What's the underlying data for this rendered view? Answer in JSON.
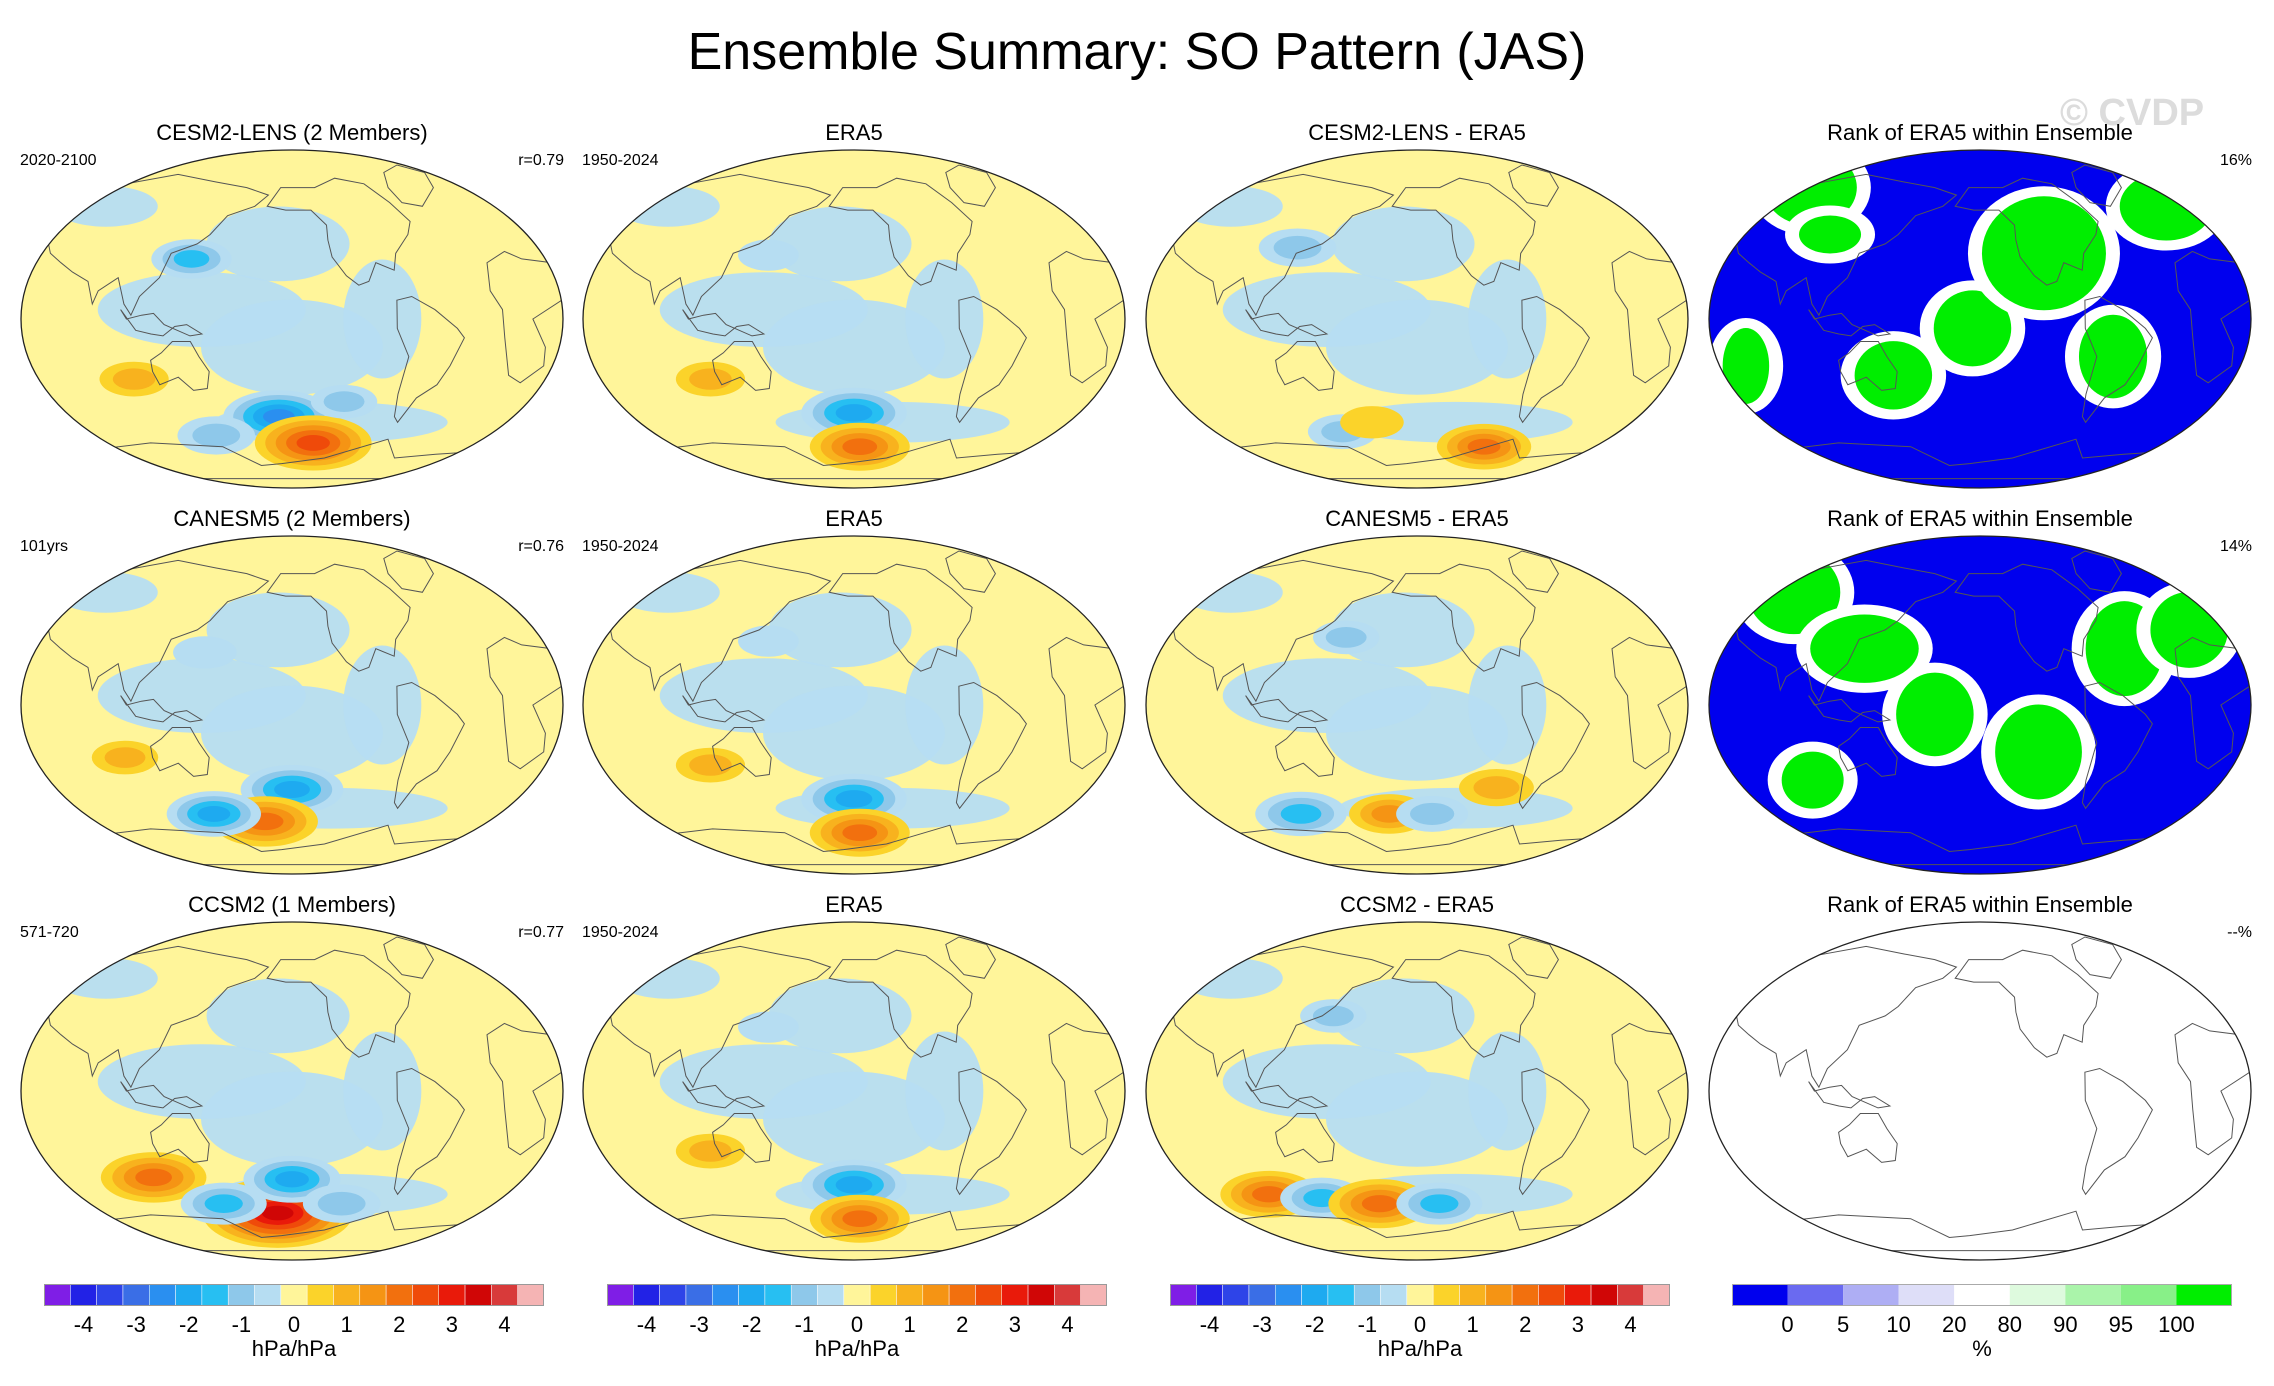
{
  "title": "Ensemble Summary: SO Pattern (JAS)",
  "watermark": "© CVDP",
  "rows": [
    {
      "model": {
        "title": "CESM2-LENS (2 Members)",
        "left": "2020-2100",
        "right": "r=0.79"
      },
      "obs": {
        "title": "ERA5",
        "left": "1950-2024"
      },
      "diff": {
        "title": "CESM2-LENS - ERA5"
      },
      "rank": {
        "title": "Rank of ERA5 within Ensemble",
        "right": "16%"
      }
    },
    {
      "model": {
        "title": "CANESM5 (2 Members)",
        "left": "101yrs",
        "right": "r=0.76"
      },
      "obs": {
        "title": "ERA5",
        "left": "1950-2024"
      },
      "diff": {
        "title": "CANESM5 - ERA5"
      },
      "rank": {
        "title": "Rank of ERA5 within Ensemble",
        "right": "14%"
      }
    },
    {
      "model": {
        "title": "CCSM2 (1 Members)",
        "left": "571-720",
        "right": "r=0.77"
      },
      "obs": {
        "title": "ERA5",
        "left": "1950-2024"
      },
      "diff": {
        "title": "CCSM2 - ERA5"
      },
      "rank": {
        "title": "Rank of ERA5 within Ensemble",
        "right": "--%"
      }
    }
  ],
  "chart_data": {
    "type": "heatmap",
    "projection": "Robinson, Pacific-centered",
    "field_colorbar": {
      "unit": "hPa/hPa",
      "tick_labels": [
        "-4",
        "-3",
        "-2",
        "-1",
        "0",
        "1",
        "2",
        "3",
        "4"
      ],
      "levels": [
        -4.5,
        -4,
        -3.5,
        -3,
        -2.5,
        -2,
        -1.5,
        -1,
        -0.5,
        0,
        0.5,
        1,
        1.5,
        2,
        2.5,
        3,
        3.5,
        4,
        4.5
      ],
      "colors": [
        "#7f1ee6",
        "#2222e6",
        "#2e44e8",
        "#3a6ee6",
        "#2a8ff0",
        "#1eaaf0",
        "#27bff2",
        "#8ec8ea",
        "#b6ddf2",
        "#fff59a",
        "#fbd32a",
        "#f8b21e",
        "#f59414",
        "#f2700e",
        "#ef4a0a",
        "#e91a0a",
        "#d00606",
        "#d83a3a",
        "#f5b4b4"
      ]
    },
    "rank_colorbar": {
      "unit": "%",
      "tick_labels": [
        "0",
        "5",
        "10",
        "20",
        "80",
        "90",
        "95",
        "100"
      ],
      "colors": [
        "#0000ee",
        "#6a6af0",
        "#aeaef4",
        "#dedef8",
        "#ffffff",
        "#defade",
        "#aaf4aa",
        "#88f088",
        "#00ee00"
      ]
    },
    "panels": [
      {
        "row": 0,
        "col": 0,
        "features": [
          {
            "sign": "neg",
            "lon": 200,
            "lat": -52,
            "value": -2.4
          },
          {
            "sign": "pos",
            "lon": 228,
            "lat": -66,
            "value": 2.6
          },
          {
            "sign": "neg",
            "lon": 148,
            "lat": -62,
            "value": -1.2
          },
          {
            "sign": "neg",
            "lon": 140,
            "lat": 32,
            "value": -1.3
          },
          {
            "sign": "pos",
            "lon": 100,
            "lat": -32,
            "value": 0.9
          },
          {
            "sign": "neg",
            "lon": 248,
            "lat": -44,
            "value": -0.8
          }
        ]
      },
      {
        "row": 0,
        "col": 1,
        "features": [
          {
            "sign": "neg",
            "lon": 210,
            "lat": -50,
            "value": -2.2
          },
          {
            "sign": "pos",
            "lon": 215,
            "lat": -68,
            "value": 2.0
          },
          {
            "sign": "pos",
            "lon": 110,
            "lat": -32,
            "value": 0.9
          },
          {
            "sign": "neg",
            "lon": 150,
            "lat": 34,
            "value": -0.6
          }
        ]
      },
      {
        "row": 0,
        "col": 2,
        "features": [
          {
            "sign": "neg",
            "lon": 125,
            "lat": 38,
            "value": -1.2
          },
          {
            "sign": "pos",
            "lon": 268,
            "lat": -68,
            "value": 1.8
          },
          {
            "sign": "neg",
            "lon": 150,
            "lat": -60,
            "value": -0.9
          },
          {
            "sign": "pos",
            "lon": 175,
            "lat": -55,
            "value": 0.7
          }
        ]
      },
      {
        "row": 1,
        "col": 0,
        "features": [
          {
            "sign": "neg",
            "lon": 210,
            "lat": -45,
            "value": -2.1
          },
          {
            "sign": "pos",
            "lon": 188,
            "lat": -62,
            "value": 2.2
          },
          {
            "sign": "neg",
            "lon": 148,
            "lat": -58,
            "value": -1.8
          },
          {
            "sign": "pos",
            "lon": 95,
            "lat": -28,
            "value": 0.8
          },
          {
            "sign": "neg",
            "lon": 150,
            "lat": 28,
            "value": -0.7
          }
        ]
      },
      {
        "row": 1,
        "col": 1,
        "features": [
          {
            "sign": "neg",
            "lon": 210,
            "lat": -50,
            "value": -2.2
          },
          {
            "sign": "pos",
            "lon": 215,
            "lat": -68,
            "value": 2.0
          },
          {
            "sign": "pos",
            "lon": 110,
            "lat": -32,
            "value": 0.9
          },
          {
            "sign": "neg",
            "lon": 150,
            "lat": 34,
            "value": -0.6
          }
        ]
      },
      {
        "row": 1,
        "col": 2,
        "features": [
          {
            "sign": "neg",
            "lon": 118,
            "lat": -58,
            "value": -1.7
          },
          {
            "sign": "pos",
            "lon": 188,
            "lat": -58,
            "value": 1.3
          },
          {
            "sign": "neg",
            "lon": 222,
            "lat": -58,
            "value": -1.0
          },
          {
            "sign": "pos",
            "lon": 268,
            "lat": -44,
            "value": 1.1
          },
          {
            "sign": "neg",
            "lon": 160,
            "lat": 36,
            "value": -0.8
          }
        ]
      },
      {
        "row": 2,
        "col": 0,
        "features": [
          {
            "sign": "pos",
            "lon": 108,
            "lat": -46,
            "value": 2.2
          },
          {
            "sign": "pos",
            "lon": 198,
            "lat": -65,
            "value": 3.8
          },
          {
            "sign": "neg",
            "lon": 210,
            "lat": -47,
            "value": -1.9
          },
          {
            "sign": "neg",
            "lon": 155,
            "lat": -60,
            "value": -1.5
          },
          {
            "sign": "neg",
            "lon": 250,
            "lat": -60,
            "value": -1.2
          }
        ]
      },
      {
        "row": 2,
        "col": 1,
        "features": [
          {
            "sign": "neg",
            "lon": 210,
            "lat": -50,
            "value": -2.2
          },
          {
            "sign": "pos",
            "lon": 215,
            "lat": -68,
            "value": 2.0
          },
          {
            "sign": "pos",
            "lon": 110,
            "lat": -32,
            "value": 0.9
          },
          {
            "sign": "neg",
            "lon": 150,
            "lat": 34,
            "value": -0.6
          }
        ]
      },
      {
        "row": 2,
        "col": 2,
        "features": [
          {
            "sign": "pos",
            "lon": 95,
            "lat": -55,
            "value": 1.9
          },
          {
            "sign": "neg",
            "lon": 135,
            "lat": -57,
            "value": -1.4
          },
          {
            "sign": "pos",
            "lon": 180,
            "lat": -60,
            "value": 2.1
          },
          {
            "sign": "neg",
            "lon": 228,
            "lat": -60,
            "value": -1.5
          },
          {
            "sign": "neg",
            "lon": 150,
            "lat": 40,
            "value": -0.8
          }
        ]
      }
    ]
  }
}
